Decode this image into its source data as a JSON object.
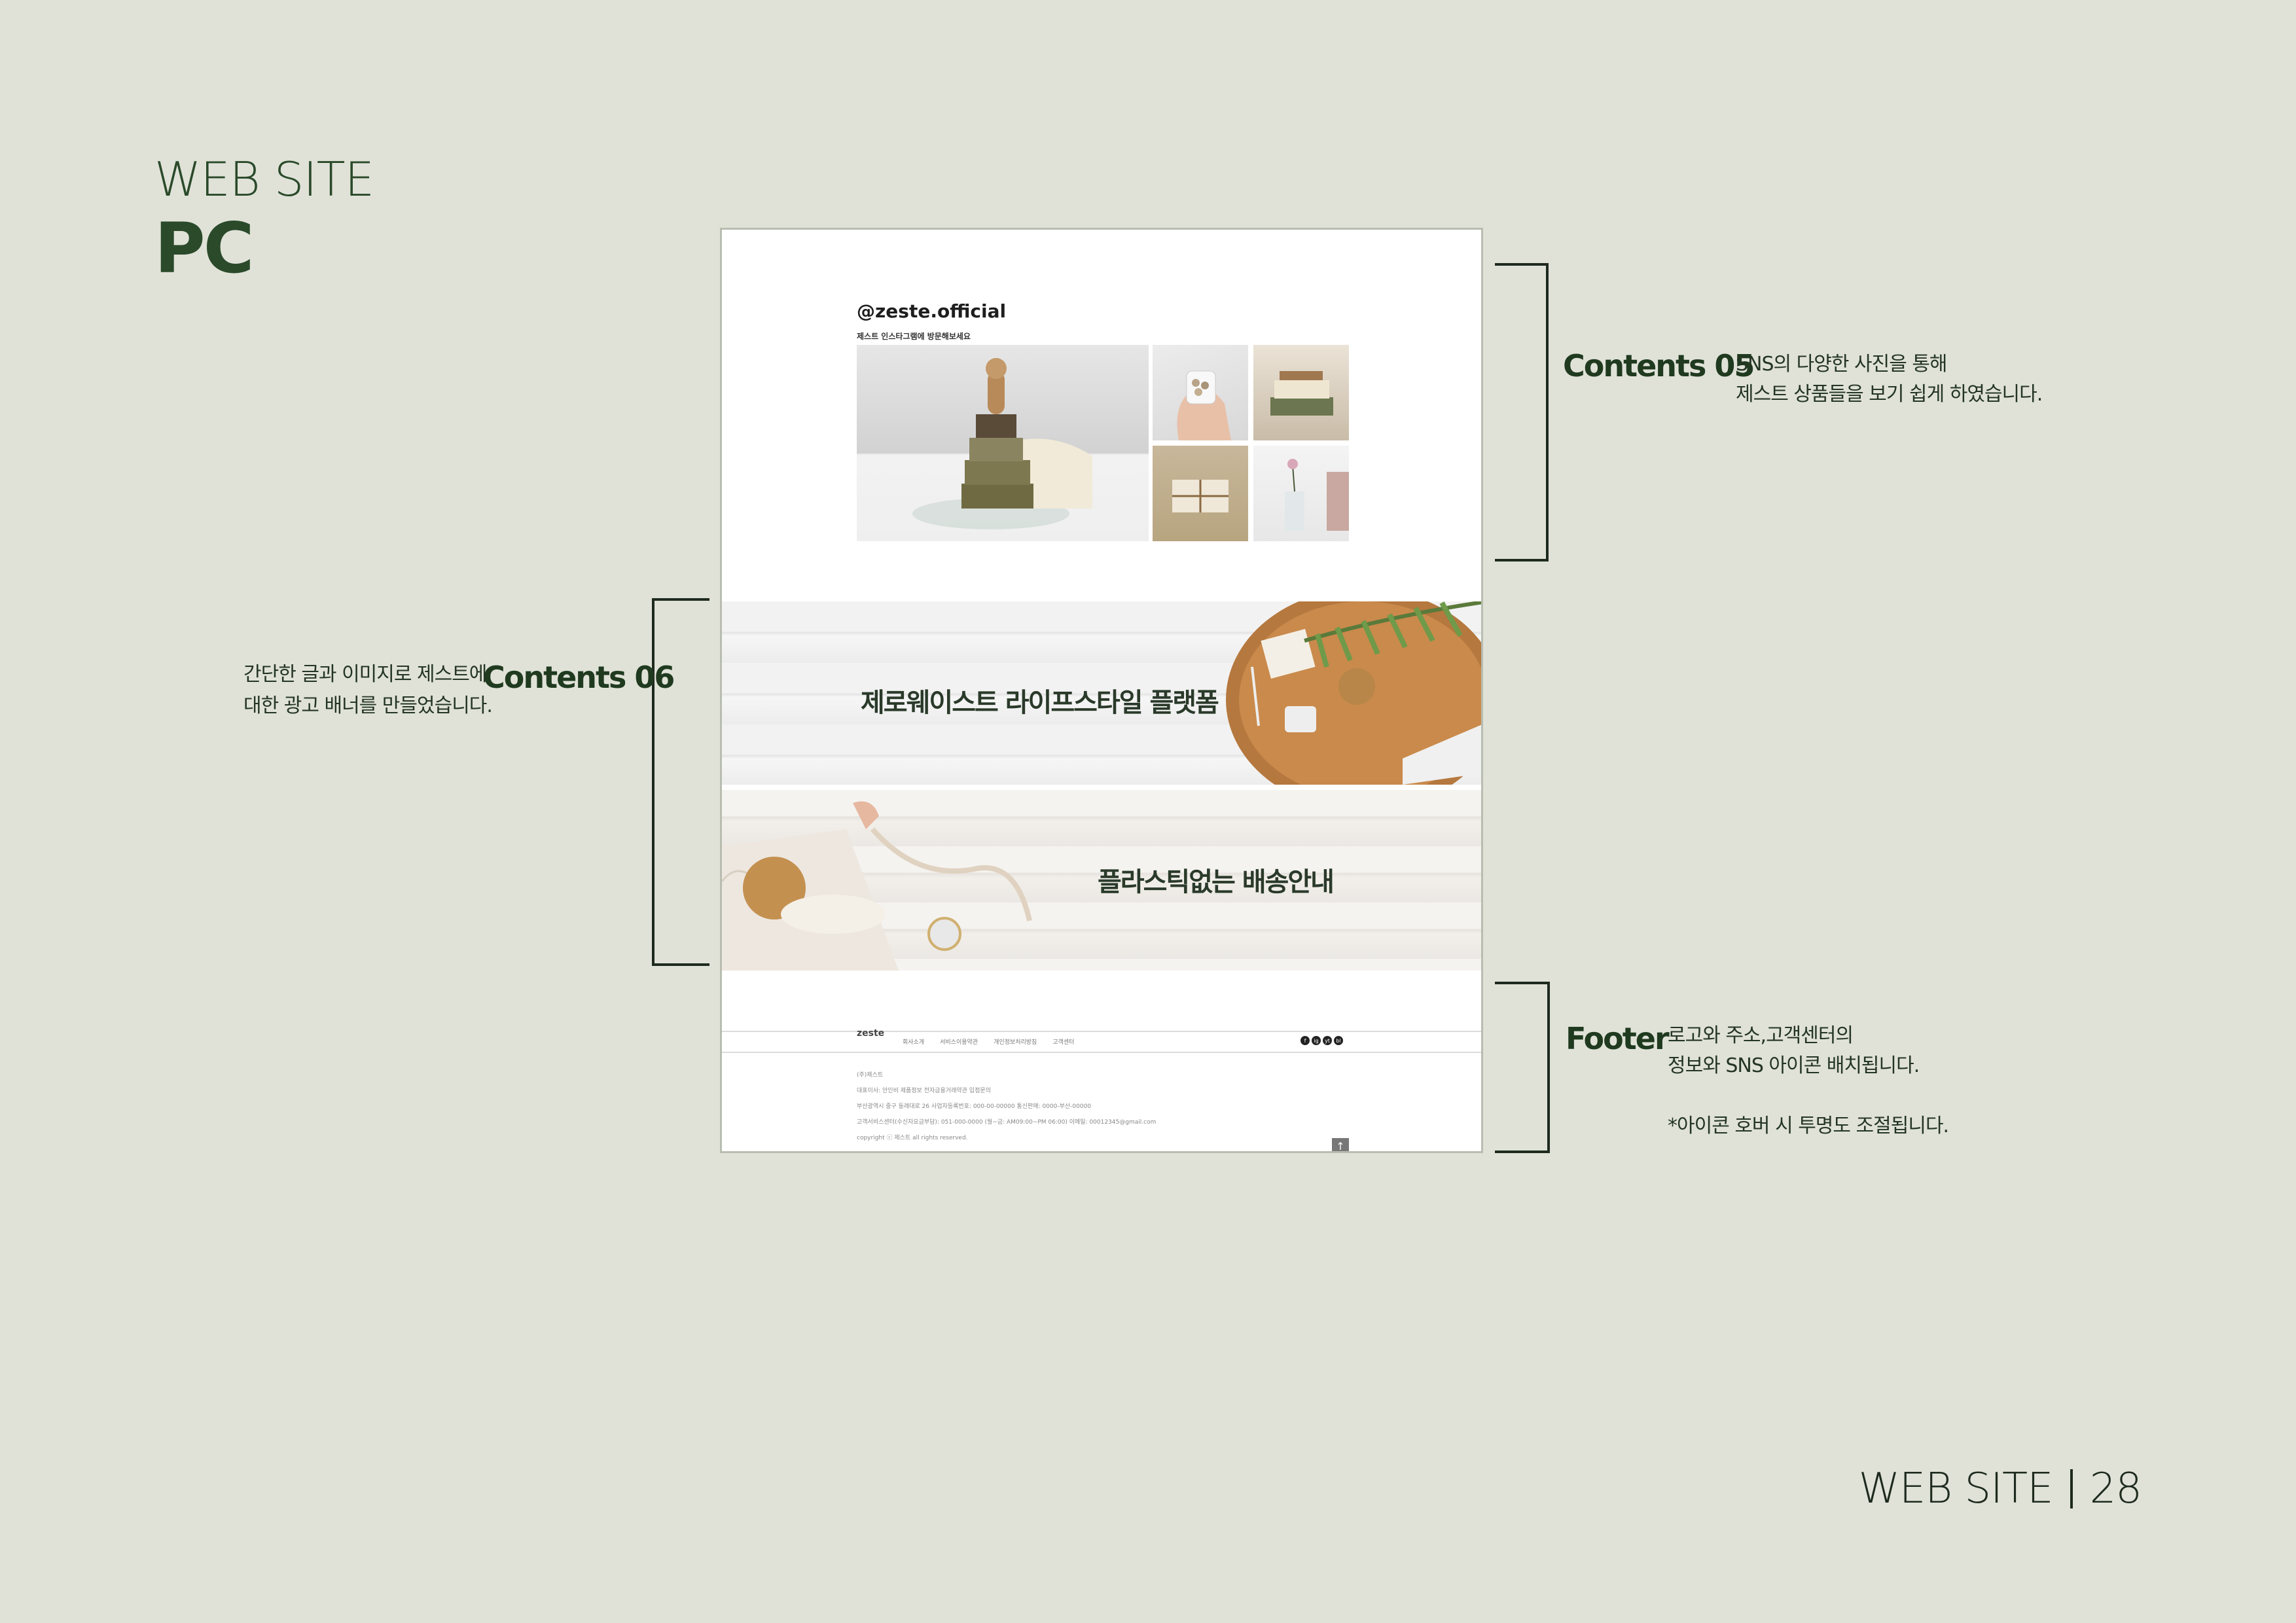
{
  "page": {
    "kicker": "WEB SITE",
    "heading": "PC",
    "section": "WEB SITE",
    "number": "28"
  },
  "mockup": {
    "sns": {
      "handle": "@zeste.official",
      "subtitle": "제스트 인스타그램에 방문해보세요"
    },
    "banners": [
      "제로웨이스트 라이프스타일 플랫폼",
      "플라스틱없는 배송안내"
    ],
    "footer": {
      "logo": "zeste",
      "nav": [
        "회사소개",
        "서비스이용약관",
        "개인정보처리방침",
        "고객센터"
      ],
      "sns_icons": [
        "f",
        "ig",
        "yt",
        "bl"
      ],
      "info_lines": [
        "(주)제스트",
        "대표이사: 안인비     제품정보     전자금융거래약관     입점문의",
        "부산광역시 중구 동래대로 26     사업자등록번호: 000-00-00000     통신판매: 0000-부산-00000",
        "고객서비스센터(수신자요금부담): 051-000-0000 (월~금: AM09:00~PM 06:00)     이메일: 00012345@gmail.com",
        "copyright ⓒ 제스트 all rights reserved."
      ],
      "top_button": "↑"
    }
  },
  "annotations": {
    "contents05": {
      "title": "Contents 05",
      "lines": [
        "SNS의 다양한 사진을 통해",
        "제스트 상품들을 보기 쉽게 하였습니다."
      ]
    },
    "contents06": {
      "title": "Contents 06",
      "lines": [
        "간단한 글과 이미지로 제스트에",
        "대한 광고 배너를 만들었습니다."
      ]
    },
    "footer": {
      "title": "Footer",
      "lines": [
        "로고와 주소,고객센터의",
        "정보와 SNS 아이콘 배치됩니다.",
        "",
        "*아이콘 호버 시 투명도 조절됩니다."
      ]
    }
  }
}
